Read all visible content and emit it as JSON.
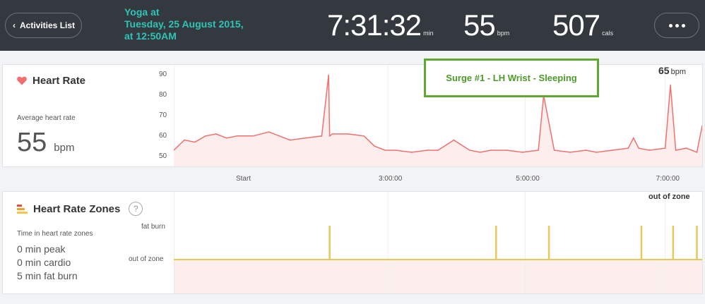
{
  "header": {
    "back_label": "Activities List",
    "activity_title_line1": "Yoga at",
    "activity_title_line2": "Tuesday, 25 August 2015,",
    "activity_title_line3": "at 12:50AM",
    "duration": "7:31:32",
    "duration_unit": "min",
    "heart_rate": "55",
    "heart_rate_unit": "bpm",
    "calories": "507",
    "calories_unit": "cals"
  },
  "heart_rate_panel": {
    "title": "Heart Rate",
    "avg_label": "Average heart rate",
    "avg_value": "55",
    "avg_unit": "bpm",
    "current_value": "65",
    "current_unit": "bpm",
    "annotation": "Surge #1 - LH Wrist - Sleeping"
  },
  "time_axis": [
    "Start",
    "3:00:00",
    "5:00:00",
    "7:00:00"
  ],
  "zones_panel": {
    "title": "Heart Rate Zones",
    "help": "?",
    "subtitle": "Time in heart rate zones",
    "peak": "0 min peak",
    "cardio": "0 min cardio",
    "fat_burn": "5 min fat burn",
    "level_high": "fat burn",
    "level_low": "out of zone",
    "current_zone": "out of zone"
  },
  "colors": {
    "line": "#f07070",
    "fill": "#fdeeee",
    "zone_line": "#e9c85a",
    "accent": "#2ec4b6",
    "annotation_border": "#5ea832"
  },
  "chart_data": [
    {
      "type": "line",
      "title": "Heart Rate",
      "ylabel": "",
      "y_ticks": [
        50,
        60,
        70,
        80,
        90
      ],
      "ylim": [
        45,
        95
      ],
      "xlim": [
        0,
        1
      ],
      "x_tick_labels": [
        "Start",
        "3:00:00",
        "5:00:00",
        "7:00:00"
      ],
      "series": [
        {
          "x": [
            0,
            0.02,
            0.04,
            0.06,
            0.08,
            0.1,
            0.12,
            0.15,
            0.18,
            0.2,
            0.22,
            0.25,
            0.28,
            0.293,
            0.295,
            0.3,
            0.33,
            0.36,
            0.38,
            0.4,
            0.42,
            0.45,
            0.48,
            0.5,
            0.53,
            0.56,
            0.58,
            0.6,
            0.63,
            0.66,
            0.69,
            0.7,
            0.72,
            0.75,
            0.78,
            0.8,
            0.83,
            0.86,
            0.87,
            0.88,
            0.9,
            0.93,
            0.94,
            0.95,
            0.97,
            0.99,
            1.0
          ],
          "y": [
            53,
            58,
            57,
            60,
            61,
            59,
            60,
            60,
            62,
            60,
            58,
            59,
            60,
            90,
            60,
            61,
            61,
            60,
            55,
            53,
            53,
            52,
            53,
            53,
            58,
            53,
            52,
            53,
            53,
            52,
            53,
            80,
            53,
            52,
            53,
            52,
            53,
            54,
            59,
            54,
            53,
            54,
            85,
            53,
            54,
            52,
            65
          ]
        }
      ]
    },
    {
      "type": "line",
      "title": "Heart Rate Zones",
      "y_levels": [
        "out of zone",
        "fat burn"
      ],
      "series": [
        {
          "baseline": "out of zone",
          "fat_burn_spikes_x": [
            0.295,
            0.61,
            0.71,
            0.885,
            0.945,
            0.99
          ]
        }
      ]
    }
  ]
}
